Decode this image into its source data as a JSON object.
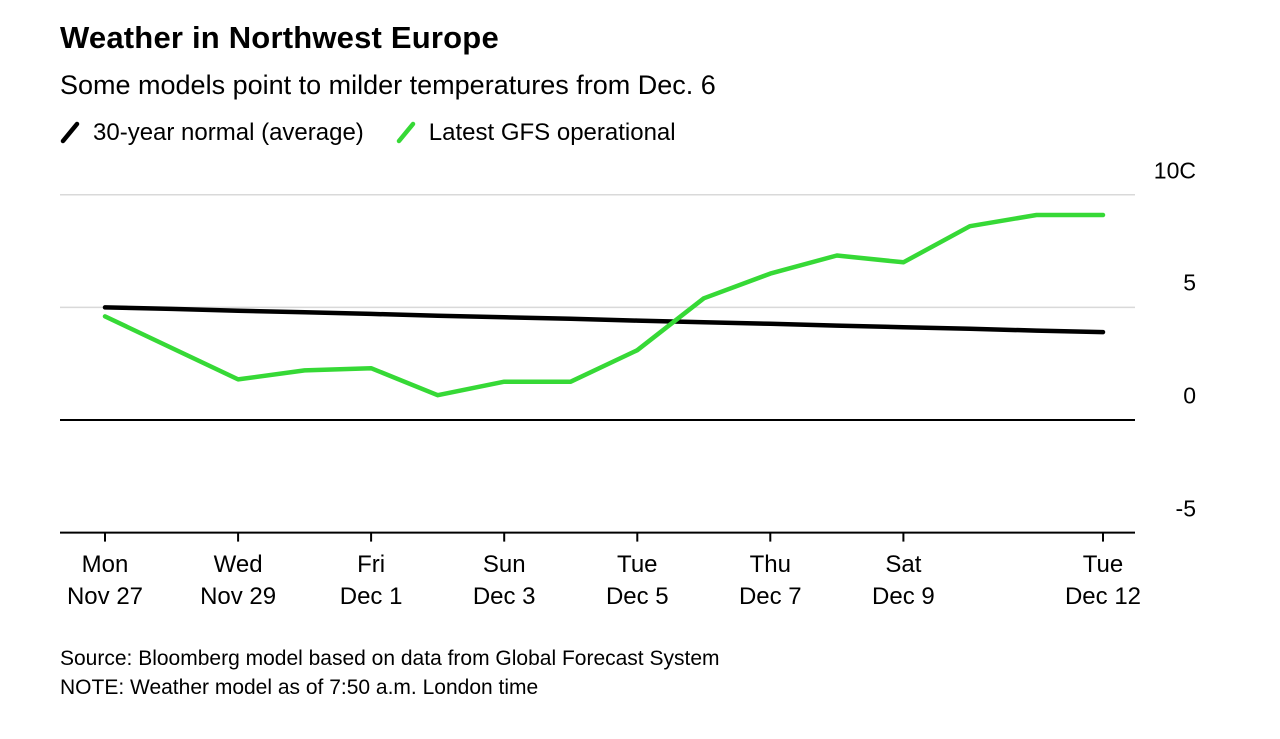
{
  "chart_data": {
    "type": "line",
    "title": "Weather in Northwest Europe",
    "subtitle": "Some models point to milder temperatures from Dec. 6",
    "unit": "C",
    "grid": "horizontal",
    "legend_position": "top-left",
    "ylim": [
      -5,
      10
    ],
    "x": [
      "Nov 27",
      "Nov 28",
      "Nov 29",
      "Nov 30",
      "Dec 1",
      "Dec 2",
      "Dec 3",
      "Dec 4",
      "Dec 5",
      "Dec 6",
      "Dec 7",
      "Dec 8",
      "Dec 9",
      "Dec 10",
      "Dec 11",
      "Dec 12"
    ],
    "series": [
      {
        "name": "30-year normal (average)",
        "color": "#000000",
        "values": [
          5.0,
          4.93,
          4.85,
          4.78,
          4.71,
          4.63,
          4.56,
          4.49,
          4.41,
          4.34,
          4.27,
          4.19,
          4.12,
          4.05,
          3.97,
          3.9
        ]
      },
      {
        "name": "Latest GFS operational",
        "color": "#36d936",
        "values": [
          4.6,
          3.2,
          1.8,
          2.2,
          2.3,
          1.1,
          1.7,
          1.7,
          3.1,
          5.4,
          6.5,
          7.3,
          7.0,
          8.6,
          9.1,
          9.1
        ]
      }
    ],
    "yticks": [
      {
        "value": 10,
        "label": "10C"
      },
      {
        "value": 5,
        "label": "5"
      },
      {
        "value": 0,
        "label": "0"
      },
      {
        "value": -5,
        "label": "-5"
      }
    ],
    "xticks": [
      {
        "index": 0,
        "day": "Mon",
        "date": "Nov 27"
      },
      {
        "index": 2,
        "day": "Wed",
        "date": "Nov 29"
      },
      {
        "index": 4,
        "day": "Fri",
        "date": "Dec 1"
      },
      {
        "index": 6,
        "day": "Sun",
        "date": "Dec 3"
      },
      {
        "index": 8,
        "day": "Tue",
        "date": "Dec 5"
      },
      {
        "index": 10,
        "day": "Thu",
        "date": "Dec 7"
      },
      {
        "index": 12,
        "day": "Sat",
        "date": "Dec 9"
      },
      {
        "index": 15,
        "day": "Tue",
        "date": "Dec 12"
      }
    ],
    "colors": {
      "gridline": "#d9d9d9",
      "axis": "#000000",
      "text": "#000000"
    }
  },
  "footer": {
    "source": "Source: Bloomberg model based on data from Global Forecast System",
    "note": "NOTE: Weather model as of 7:50 a.m. London time"
  }
}
